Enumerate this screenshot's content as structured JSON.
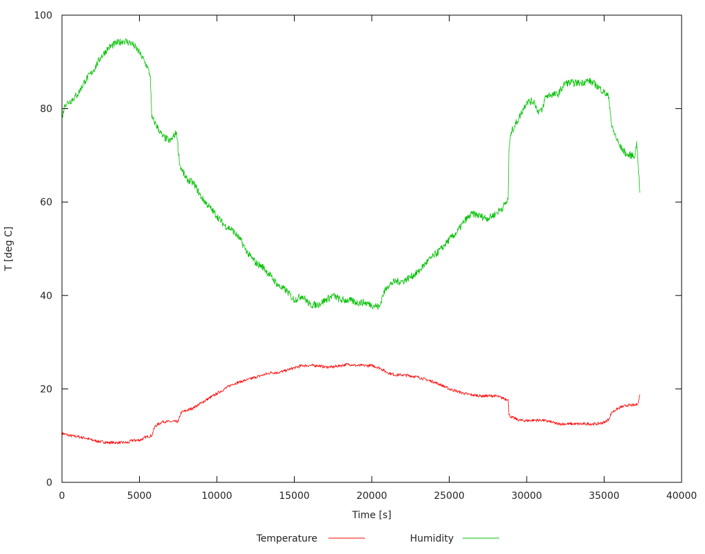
{
  "chart_data": {
    "type": "line",
    "title": "",
    "xlabel": "Time [s]",
    "ylabel": "T [deg C]",
    "xlim": [
      0,
      40000
    ],
    "ylim": [
      0,
      100
    ],
    "xticks": [
      0,
      5000,
      10000,
      15000,
      20000,
      25000,
      30000,
      35000,
      40000
    ],
    "yticks": [
      0,
      20,
      40,
      60,
      80,
      100
    ],
    "grid": false,
    "legend_position": "bottom",
    "series": [
      {
        "name": "Temperature",
        "color": "#ff0000",
        "x": [
          0,
          500,
          1000,
          1500,
          2000,
          2500,
          3000,
          4000,
          4300,
          4500,
          5000,
          5500,
          5800,
          6000,
          6500,
          7000,
          7500,
          7700,
          8000,
          8500,
          9000,
          9500,
          10000,
          10500,
          11000,
          11500,
          12000,
          12500,
          13000,
          13500,
          14000,
          14500,
          15000,
          15500,
          16000,
          16500,
          17000,
          17500,
          18000,
          18500,
          19000,
          19500,
          20000,
          20500,
          21000,
          21500,
          22000,
          22500,
          23000,
          23500,
          24000,
          24500,
          25000,
          25500,
          26000,
          26500,
          27000,
          27500,
          28000,
          28800,
          28850,
          29000,
          29500,
          30000,
          30500,
          31000,
          31500,
          32000,
          32500,
          33000,
          33500,
          34000,
          34500,
          35000,
          35300,
          35500,
          36000,
          36500,
          37000,
          37200,
          37300
        ],
        "y": [
          10.5,
          10,
          9.8,
          9.5,
          9,
          8.7,
          8.5,
          8.5,
          8.5,
          9,
          9,
          9.8,
          10,
          12,
          13,
          13,
          13,
          15,
          15.3,
          16,
          17,
          18,
          19,
          20,
          21,
          21.5,
          22,
          22.5,
          23,
          23.5,
          23.5,
          24,
          24.5,
          25,
          25,
          25,
          24.7,
          24.7,
          25,
          25.3,
          25,
          25,
          25,
          24.5,
          23.5,
          23,
          23,
          22.8,
          22.5,
          22,
          21.5,
          20.8,
          20,
          19.5,
          19,
          18.7,
          18.5,
          18.5,
          18.5,
          17.7,
          14.5,
          14,
          13.3,
          13.2,
          13.3,
          13.3,
          13,
          12.5,
          12.5,
          12.5,
          12.5,
          12.5,
          12.5,
          12.8,
          13.5,
          15,
          16,
          16.5,
          16.5,
          17,
          18.8
        ]
      },
      {
        "name": "Humidity",
        "color": "#00c000",
        "x": [
          0,
          200,
          500,
          1000,
          1500,
          2000,
          2500,
          3000,
          3500,
          4000,
          4500,
          5000,
          5500,
          5700,
          5800,
          6000,
          6500,
          7000,
          7400,
          7600,
          8000,
          8500,
          9000,
          9500,
          10000,
          10500,
          11000,
          11500,
          12000,
          12500,
          13000,
          13500,
          14000,
          14500,
          15000,
          15500,
          16000,
          16500,
          17000,
          17500,
          18000,
          18500,
          19000,
          19500,
          20000,
          20500,
          20700,
          21000,
          21500,
          22000,
          22500,
          23000,
          23500,
          24000,
          24500,
          25000,
          25500,
          26000,
          26500,
          27000,
          27500,
          28000,
          28500,
          28800,
          28850,
          29000,
          29500,
          30000,
          30500,
          30700,
          31000,
          31200,
          31500,
          32000,
          32500,
          33000,
          33500,
          34000,
          34500,
          35000,
          35300,
          35500,
          36000,
          36500,
          37000,
          37100,
          37200,
          37300
        ],
        "y": [
          78,
          81,
          81.5,
          83,
          86,
          88,
          91,
          93,
          94,
          94.5,
          94,
          92,
          89,
          87,
          78,
          77,
          74,
          73,
          75,
          68,
          65,
          64,
          61,
          59,
          57,
          55,
          54,
          52,
          49,
          47,
          46,
          44,
          42,
          41,
          39,
          40,
          38,
          38,
          39,
          40,
          39,
          39,
          38.5,
          38.5,
          38,
          37.5,
          40,
          42,
          43,
          43,
          44,
          45,
          47,
          48.5,
          50,
          52,
          53.5,
          56,
          57.5,
          57,
          56.5,
          57.5,
          59,
          60.5,
          71,
          75,
          78,
          81.5,
          81.5,
          79.5,
          79.5,
          82.5,
          83,
          83,
          85.5,
          85.5,
          85.5,
          86,
          85,
          83.5,
          82.5,
          76,
          72,
          70,
          70,
          73,
          68,
          62
        ]
      }
    ]
  }
}
